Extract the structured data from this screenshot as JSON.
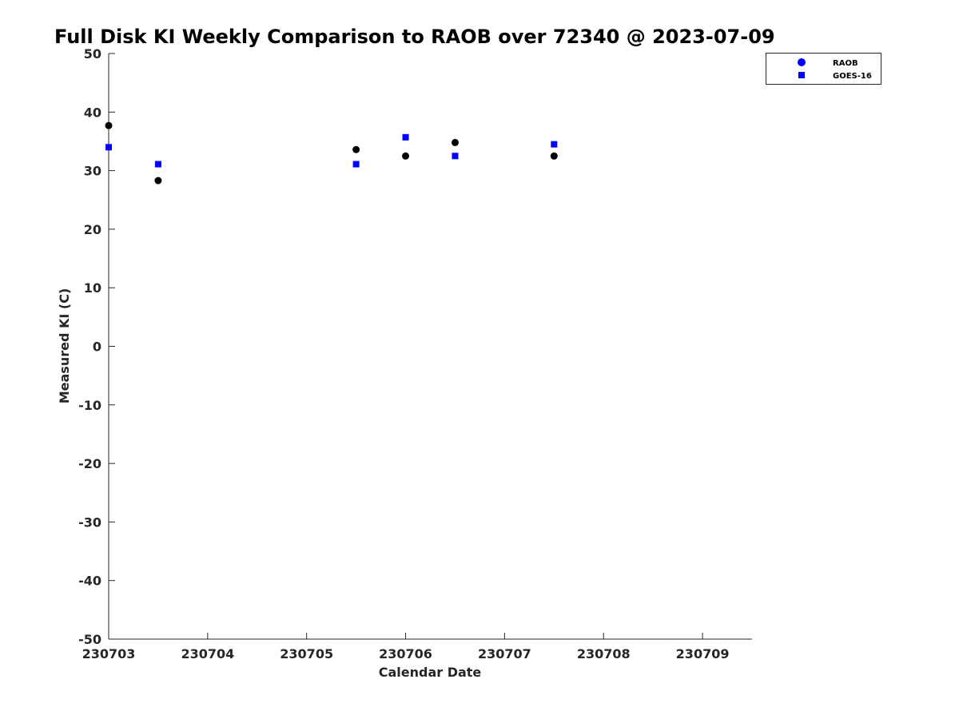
{
  "chart_data": {
    "type": "scatter",
    "title": "Full Disk KI Weekly Comparison to RAOB over 72340 @ 2023-07-09",
    "xlabel": "Calendar Date",
    "ylabel": "Measured KI (C)",
    "x_ticks": [
      "230703",
      "230704",
      "230705",
      "230706",
      "230707",
      "230708",
      "230709"
    ],
    "y_ticks": [
      50,
      40,
      30,
      20,
      10,
      0,
      -10,
      -20,
      -30,
      -40,
      -50
    ],
    "xlim": [
      "230703",
      "230709 12Z"
    ],
    "ylim": [
      -50,
      50
    ],
    "grid": false,
    "legend_position": "top-right",
    "series": [
      {
        "name": "RAOB",
        "marker": "circle",
        "color": "#000000",
        "legend_color": "#0000ff",
        "points": [
          {
            "x": "230703 00Z",
            "y": 37.7
          },
          {
            "x": "230703 12Z",
            "y": 28.3
          },
          {
            "x": "230705 12Z",
            "y": 33.6
          },
          {
            "x": "230706 00Z",
            "y": 32.5
          },
          {
            "x": "230706 12Z",
            "y": 34.8
          },
          {
            "x": "230707 12Z",
            "y": 32.5
          }
        ]
      },
      {
        "name": "GOES-16",
        "marker": "square",
        "color": "#0000ff",
        "points": [
          {
            "x": "230703 00Z",
            "y": 34.0
          },
          {
            "x": "230703 12Z",
            "y": 31.1
          },
          {
            "x": "230705 12Z",
            "y": 31.1
          },
          {
            "x": "230706 00Z",
            "y": 35.7
          },
          {
            "x": "230706 12Z",
            "y": 32.5
          },
          {
            "x": "230707 12Z",
            "y": 34.5
          }
        ]
      }
    ]
  }
}
